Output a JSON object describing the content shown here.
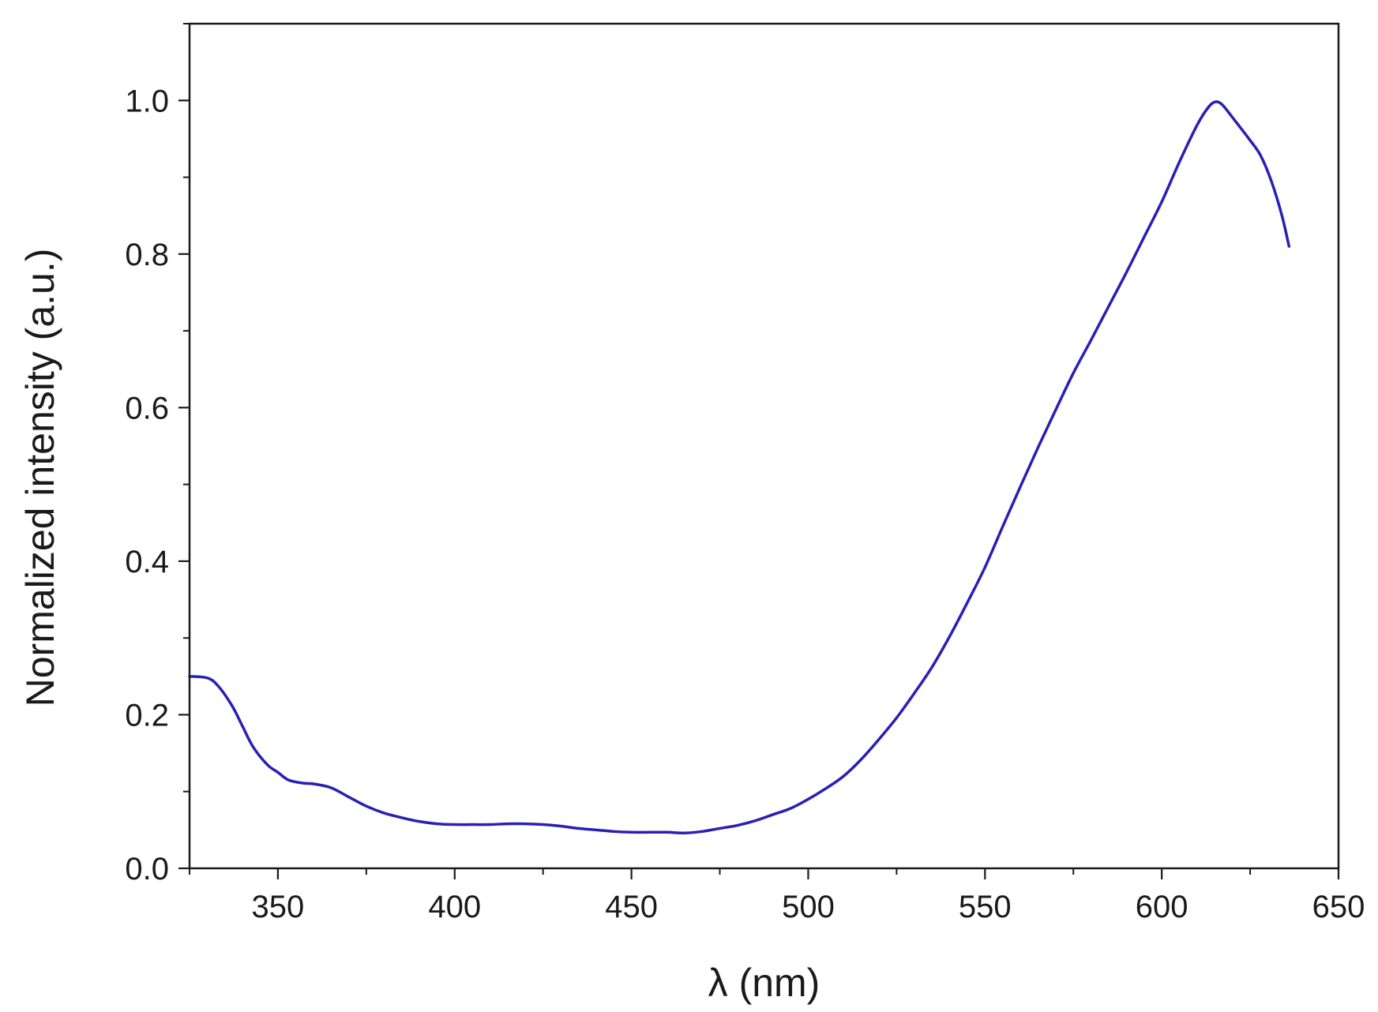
{
  "chart_data": {
    "type": "line",
    "title": "",
    "xlabel": "λ (nm)",
    "ylabel": "Normalized intensity (a.u.)",
    "xlim": [
      325,
      650
    ],
    "ylim": [
      0.0,
      1.1
    ],
    "x_ticks": [
      "350",
      "400",
      "450",
      "500",
      "550",
      "600",
      "650"
    ],
    "y_ticks": [
      "0.0",
      "0.2",
      "0.4",
      "0.6",
      "0.8",
      "1.0"
    ],
    "grid": false,
    "legend": "none",
    "line_color": "#2a1fb5",
    "series": [
      {
        "x": [
          325,
          330,
          333,
          337,
          340,
          343,
          347,
          350,
          353,
          357,
          360,
          365,
          370,
          375,
          380,
          385,
          390,
          395,
          400,
          405,
          410,
          415,
          420,
          425,
          430,
          435,
          440,
          445,
          450,
          455,
          460,
          465,
          470,
          475,
          480,
          485,
          490,
          495,
          500,
          505,
          510,
          515,
          520,
          525,
          530,
          535,
          540,
          545,
          550,
          555,
          560,
          565,
          570,
          575,
          580,
          585,
          590,
          595,
          600,
          605,
          610,
          613,
          615,
          617,
          620,
          625,
          628,
          631,
          634,
          636
        ],
        "y": [
          0.25,
          0.248,
          0.238,
          0.212,
          0.185,
          0.158,
          0.135,
          0.125,
          0.115,
          0.111,
          0.11,
          0.105,
          0.093,
          0.081,
          0.072,
          0.066,
          0.061,
          0.058,
          0.057,
          0.057,
          0.057,
          0.058,
          0.058,
          0.057,
          0.055,
          0.052,
          0.05,
          0.048,
          0.047,
          0.047,
          0.047,
          0.046,
          0.048,
          0.052,
          0.056,
          0.062,
          0.07,
          0.078,
          0.09,
          0.104,
          0.12,
          0.142,
          0.168,
          0.196,
          0.228,
          0.262,
          0.302,
          0.346,
          0.392,
          0.445,
          0.497,
          0.548,
          0.597,
          0.645,
          0.688,
          0.732,
          0.776,
          0.822,
          0.868,
          0.92,
          0.968,
          0.99,
          0.998,
          0.995,
          0.978,
          0.948,
          0.928,
          0.895,
          0.85,
          0.81
        ]
      }
    ]
  }
}
